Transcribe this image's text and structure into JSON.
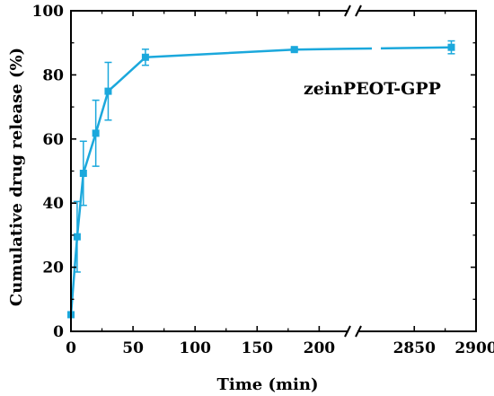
{
  "chart_data": {
    "type": "line",
    "title": "",
    "xlabel": "Time (min)",
    "ylabel": "Cumulative drug release (%)",
    "ylim": [
      0,
      100
    ],
    "y_ticks": [
      "0",
      "20",
      "40",
      "60",
      "80",
      "100"
    ],
    "x_segments": [
      {
        "range": [
          0,
          220
        ],
        "ticks": [
          "0",
          "50",
          "100",
          "150",
          "200"
        ],
        "tick_values": [
          0,
          50,
          100,
          150,
          200
        ]
      },
      {
        "range": [
          2820,
          2900
        ],
        "ticks": [
          "2850",
          "2900"
        ],
        "tick_values": [
          2850,
          2900
        ]
      }
    ],
    "axis_break": true,
    "grid": false,
    "series": [
      {
        "name": "zeinPEOT-GPP",
        "color": "#1ba8dc",
        "marker": "square",
        "points": [
          {
            "x": 0,
            "y": 5.2,
            "err": 0
          },
          {
            "x": 5,
            "y": 29.5,
            "err": 11
          },
          {
            "x": 10,
            "y": 49.3,
            "err": 10
          },
          {
            "x": 20,
            "y": 61.8,
            "err": 10.3
          },
          {
            "x": 30,
            "y": 74.9,
            "err": 9
          },
          {
            "x": 60,
            "y": 85.5,
            "err": 2.5
          },
          {
            "x": 180,
            "y": 87.9,
            "err": 0.5
          },
          {
            "x": 2880,
            "y": 88.6,
            "err": 2
          }
        ]
      }
    ],
    "legend": {
      "position": "upper-right-inside"
    }
  }
}
